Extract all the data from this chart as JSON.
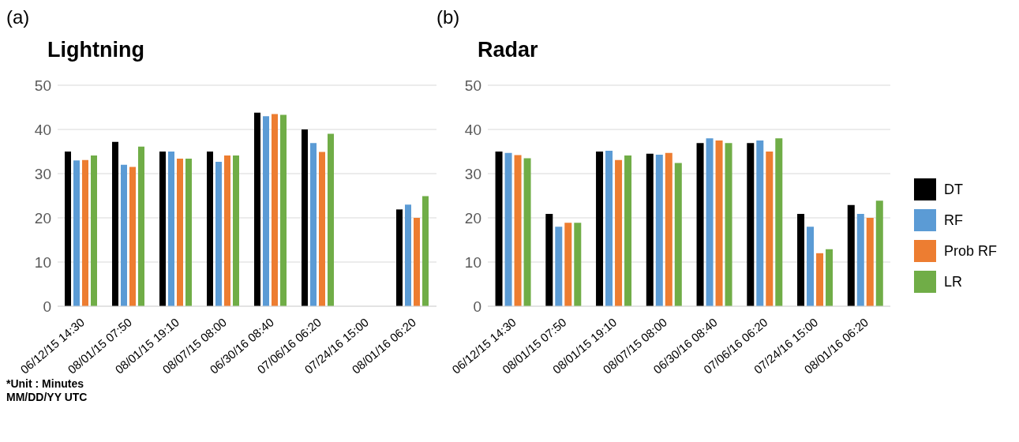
{
  "chart_data": [
    {
      "type": "bar",
      "title": "Lightning",
      "annotations": [
        "(a)",
        "*Unit : Minutes",
        "MM/DD/YY UTC"
      ],
      "categories": [
        "06/12/15 14:30",
        "08/01/15 07:50",
        "08/01/15 19:10",
        "08/07/15 08:00",
        "06/30/16 08:40",
        "07/06/16 06:20",
        "07/24/16 15:00",
        "08/01/16 06:20"
      ],
      "series": [
        {
          "color": "#000000",
          "values": [
            35,
            37.2,
            35,
            35,
            43.8,
            40,
            null,
            21.9
          ]
        },
        {
          "color": "#5b9bd5",
          "values": [
            33,
            32,
            35,
            32.7,
            43,
            36.9,
            null,
            23
          ]
        },
        {
          "color": "#ed7d31",
          "values": [
            33.1,
            31.5,
            33.4,
            34.1,
            43.5,
            34.9,
            null,
            20
          ]
        },
        {
          "color": "#70ad47",
          "values": [
            34.1,
            36.1,
            33.4,
            34.1,
            43.3,
            39,
            null,
            24.9
          ]
        }
      ],
      "ylim": [
        0,
        50
      ],
      "yticks": [
        0,
        10,
        20,
        30,
        40,
        50
      ],
      "grid": "y",
      "legend": false
    },
    {
      "type": "bar",
      "title": "Radar",
      "annotations": [
        "(b)"
      ],
      "categories": [
        "06/12/15 14:30",
        "08/01/15 07:50",
        "08/01/15 19:10",
        "08/07/15 08:00",
        "06/30/16 08:40",
        "07/06/16 06:20",
        "07/24/16 15:00",
        "08/01/16 06:20"
      ],
      "series": [
        {
          "name": "DT",
          "color": "#000000",
          "values": [
            35,
            20.9,
            35,
            34.5,
            36.9,
            36.9,
            20.9,
            22.9
          ]
        },
        {
          "name": "RF",
          "color": "#5b9bd5",
          "values": [
            34.7,
            18,
            35.2,
            34.3,
            38,
            37.5,
            18,
            20.9
          ]
        },
        {
          "name": "Prob RF",
          "color": "#ed7d31",
          "values": [
            34.2,
            18.9,
            33.1,
            34.7,
            37.5,
            35,
            12,
            20
          ]
        },
        {
          "name": "LR",
          "color": "#70ad47",
          "values": [
            33.5,
            18.9,
            34.1,
            32.4,
            36.9,
            38,
            12.9,
            23.9
          ]
        }
      ],
      "ylim": [
        0,
        50
      ],
      "yticks": [
        0,
        10,
        20,
        30,
        40,
        50
      ],
      "grid": "y",
      "legend": "right"
    }
  ]
}
